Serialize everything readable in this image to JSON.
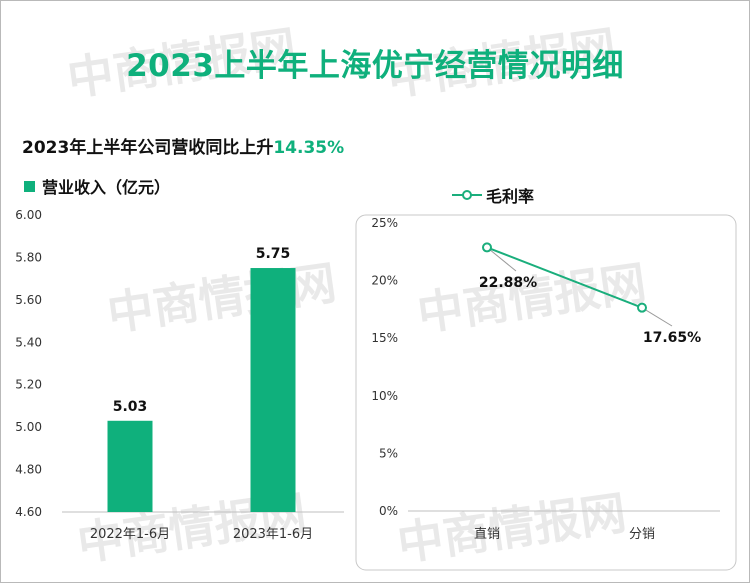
{
  "title": "2023上半年上海优宁经营情况明细",
  "subtitle": {
    "prefix": "2023年上半年公司营收同比上升",
    "highlight": "14.35%"
  },
  "watermark": "中商情报网",
  "colors": {
    "accent": "#0fb07c",
    "line": "#1aae7c"
  },
  "chart_data": [
    {
      "type": "bar",
      "legend": "营业收入（亿元）",
      "categories": [
        "2022年1-6月",
        "2023年1-6月"
      ],
      "values": [
        5.03,
        5.75
      ],
      "value_labels": [
        "5.03",
        "5.75"
      ],
      "ylim": [
        4.6,
        6.0
      ],
      "yticks": [
        "6.00",
        "5.80",
        "5.60",
        "5.40",
        "5.20",
        "5.00",
        "4.80",
        "4.60"
      ]
    },
    {
      "type": "line",
      "legend": "毛利率",
      "categories": [
        "直销",
        "分销"
      ],
      "values": [
        22.88,
        17.65
      ],
      "value_labels": [
        "22.88%",
        "17.65%"
      ],
      "ylim": [
        0,
        25
      ],
      "yticks": [
        "25%",
        "20%",
        "15%",
        "10%",
        "5%",
        "0%"
      ]
    }
  ]
}
